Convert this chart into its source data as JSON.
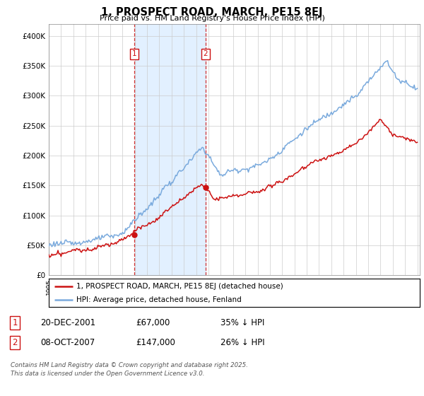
{
  "title": "1, PROSPECT ROAD, MARCH, PE15 8EJ",
  "subtitle": "Price paid vs. HM Land Registry's House Price Index (HPI)",
  "background_color": "#ffffff",
  "plot_bg_color": "#ffffff",
  "grid_color": "#cccccc",
  "hpi_color": "#7aaadd",
  "price_color": "#cc1111",
  "shade_color": "#ddeeff",
  "ylim": [
    0,
    420000
  ],
  "yticks": [
    0,
    50000,
    100000,
    150000,
    200000,
    250000,
    300000,
    350000,
    400000
  ],
  "ytick_labels": [
    "£0",
    "£50K",
    "£100K",
    "£150K",
    "£200K",
    "£250K",
    "£300K",
    "£350K",
    "£400K"
  ],
  "xstart_year": 1995,
  "xend_year": 2025,
  "sale1_price": 67000,
  "sale1_label": "1",
  "sale1_x": 2001.96,
  "sale2_price": 147000,
  "sale2_label": "2",
  "sale2_x": 2007.77,
  "legend_line1": "1, PROSPECT ROAD, MARCH, PE15 8EJ (detached house)",
  "legend_line2": "HPI: Average price, detached house, Fenland",
  "footnote": "Contains HM Land Registry data © Crown copyright and database right 2025.\nThis data is licensed under the Open Government Licence v3.0.",
  "table_row1_label": "1",
  "table_row1_date": "20-DEC-2001",
  "table_row1_price": "£67,000",
  "table_row1_hpi": "35% ↓ HPI",
  "table_row2_label": "2",
  "table_row2_date": "08-OCT-2007",
  "table_row2_price": "£147,000",
  "table_row2_hpi": "26% ↓ HPI"
}
